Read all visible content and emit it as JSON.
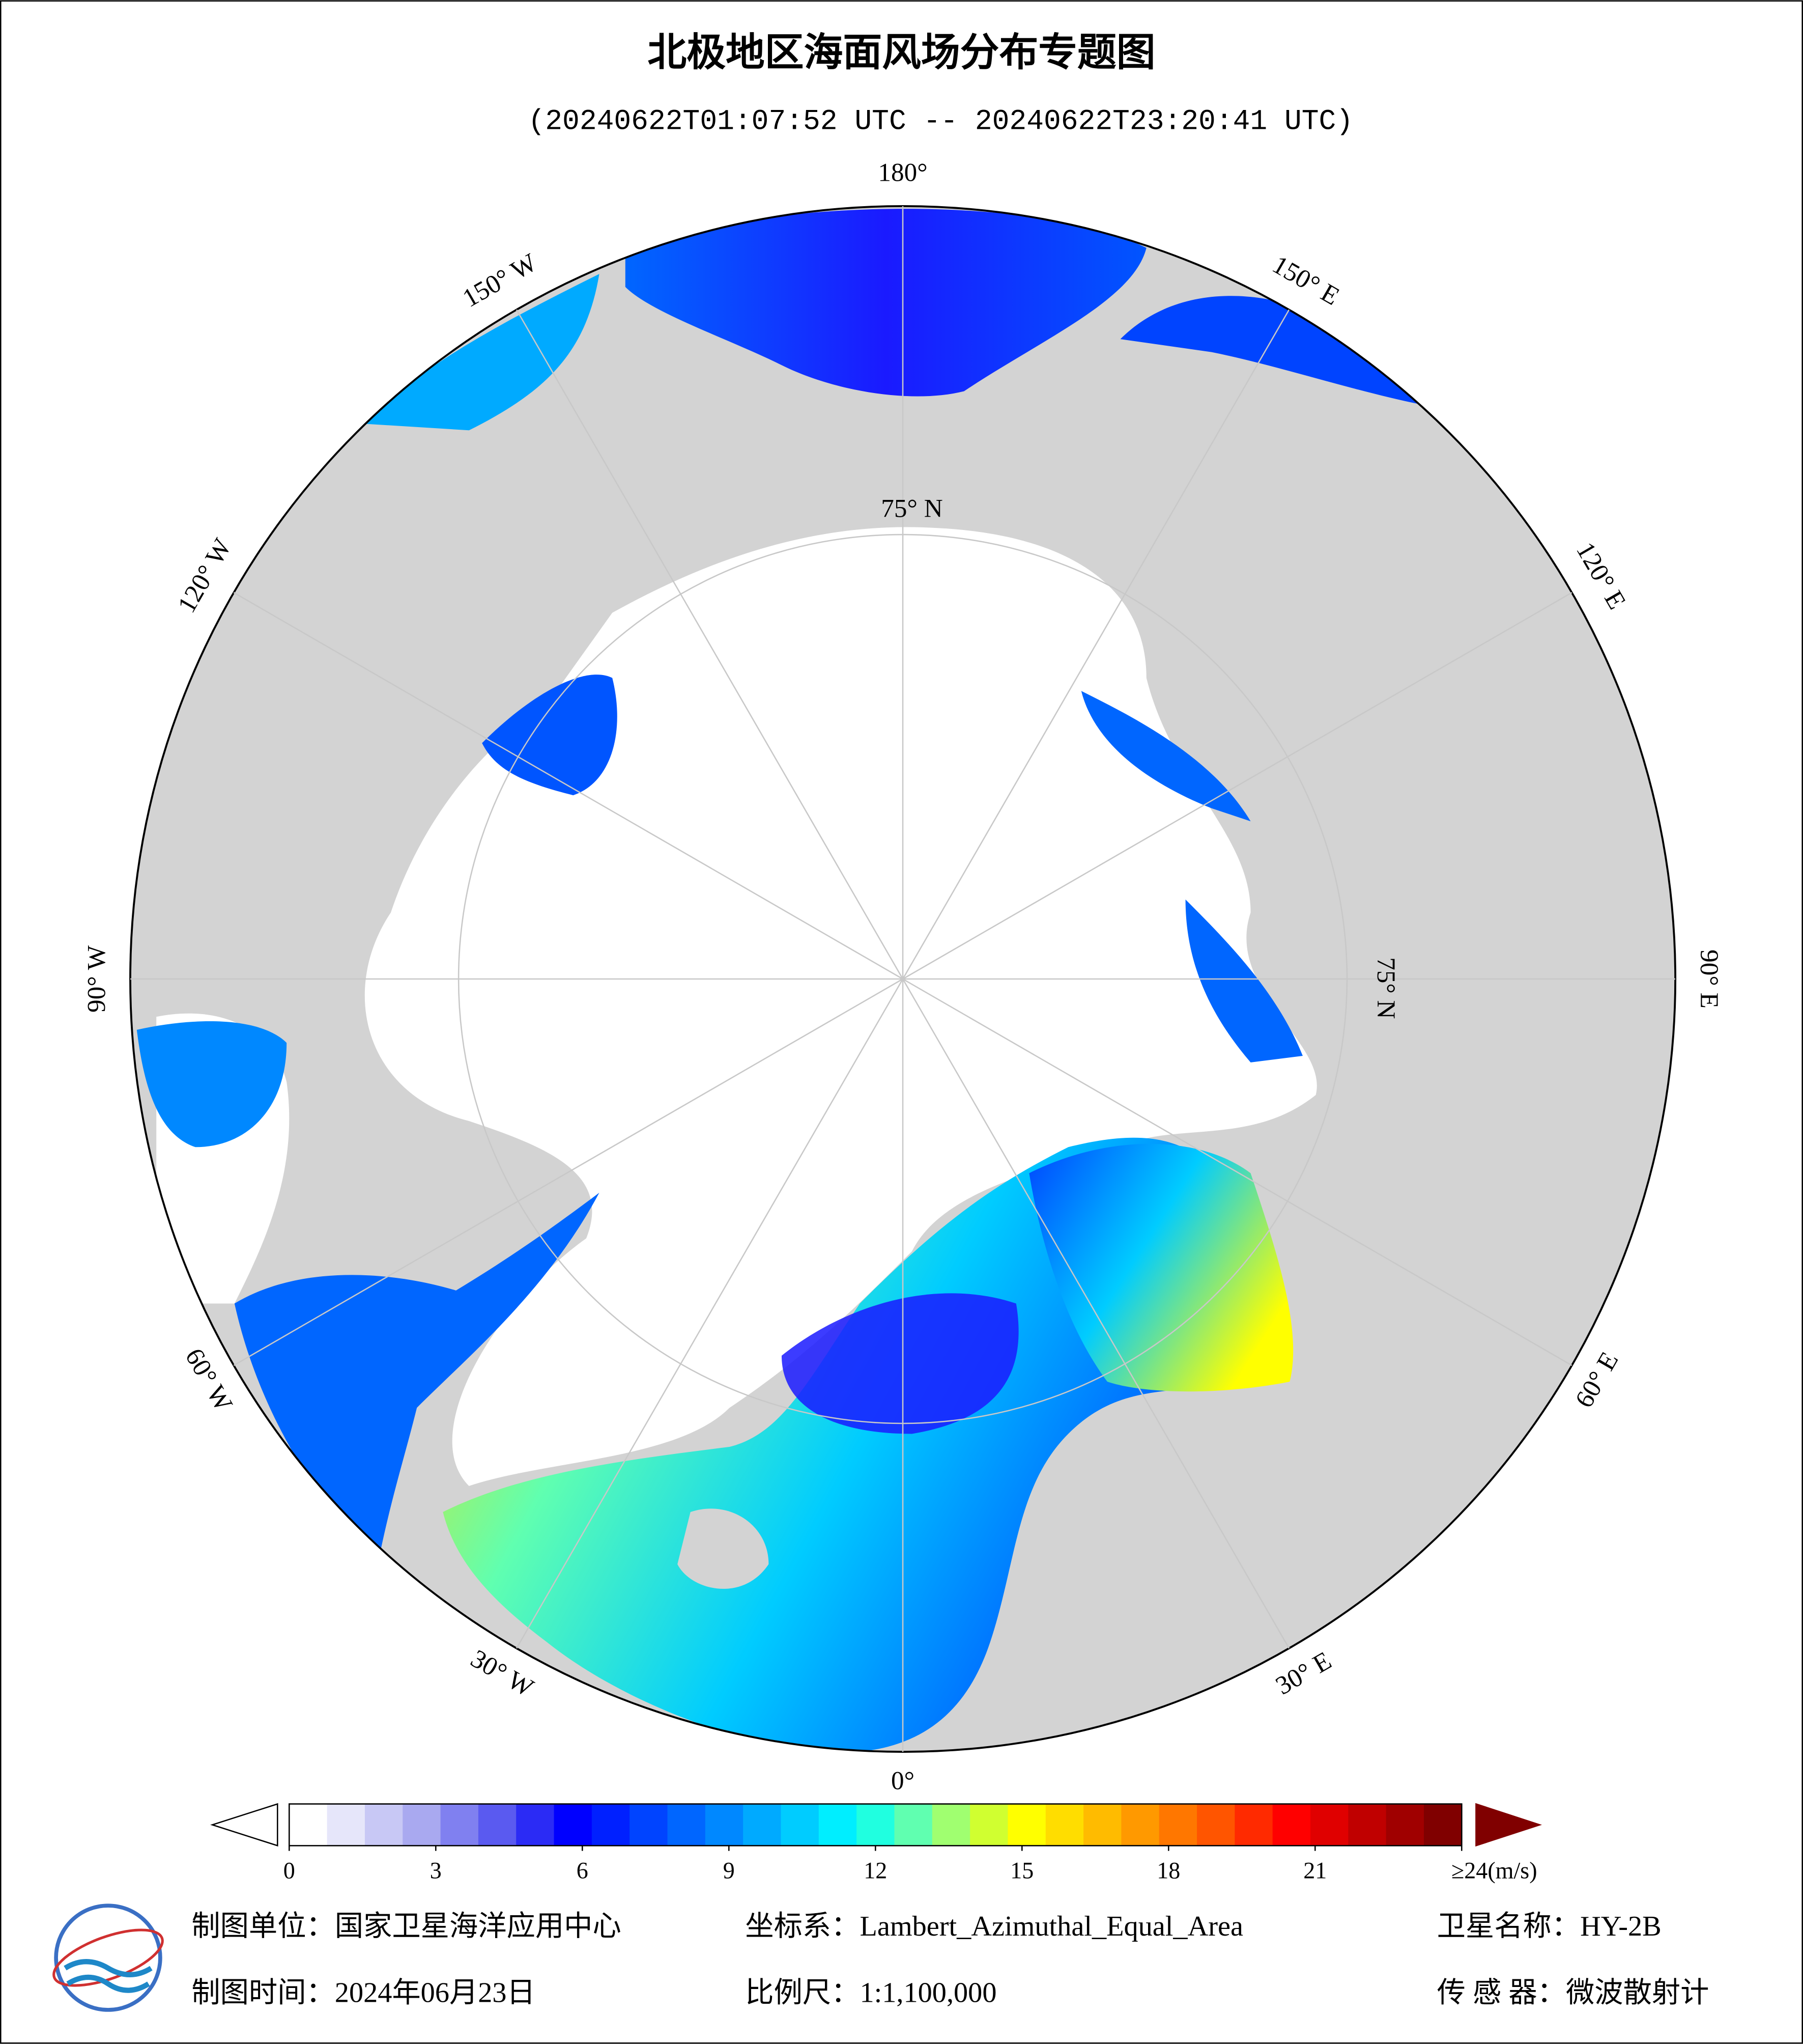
{
  "header": {
    "title": "北极地区海面风场分布专题图",
    "subtitle": "(20240622T01:07:52 UTC -- 20240622T23:20:41 UTC)"
  },
  "map": {
    "longitude_labels": [
      {
        "value": 180,
        "label": "180°"
      },
      {
        "value": -150,
        "label": "150° W"
      },
      {
        "value": -120,
        "label": "120° W"
      },
      {
        "value": -90,
        "label": "90° W"
      },
      {
        "value": -60,
        "label": "60° W"
      },
      {
        "value": -30,
        "label": "30° W"
      },
      {
        "value": 0,
        "label": "0°"
      },
      {
        "value": 30,
        "label": "30° E"
      },
      {
        "value": 60,
        "label": "60° E"
      },
      {
        "value": 90,
        "label": "90° E"
      },
      {
        "value": 120,
        "label": "120° E"
      },
      {
        "value": 150,
        "label": "150° E"
      }
    ],
    "latitude_labels": [
      "75° N",
      "75° N"
    ]
  },
  "colorbar": {
    "lim": [
      0,
      24
    ],
    "ticks": [
      0,
      3,
      6,
      9,
      12,
      15,
      18,
      21,
      {
        "value": 24,
        "label": "≥24(m/s)"
      }
    ],
    "colors": [
      "#ffffff",
      "#e6e6fa",
      "#c8c8f5",
      "#a9a9f0",
      "#8080f0",
      "#5a5af0",
      "#2b2bf5",
      "#0000ff",
      "#0020ff",
      "#0044ff",
      "#0066ff",
      "#0088ff",
      "#00aaff",
      "#00ccff",
      "#00eeff",
      "#20ffe0",
      "#60ffb0",
      "#a0ff70",
      "#d0ff30",
      "#ffff00",
      "#ffdd00",
      "#ffbb00",
      "#ff9900",
      "#ff7700",
      "#ff5500",
      "#ff2a00",
      "#ff0000",
      "#e00000",
      "#c00000",
      "#a00000",
      "#800000"
    ]
  },
  "footer": {
    "items": [
      "制图单位：国家卫星海洋应用中心",
      "坐标系：Lambert_Azimuthal_Equal_Area",
      "卫星名称：HY-2B",
      "制图时间：2024年06月23日",
      "比例尺：1:1,100,000",
      "传 感 器：微波散射计"
    ]
  }
}
